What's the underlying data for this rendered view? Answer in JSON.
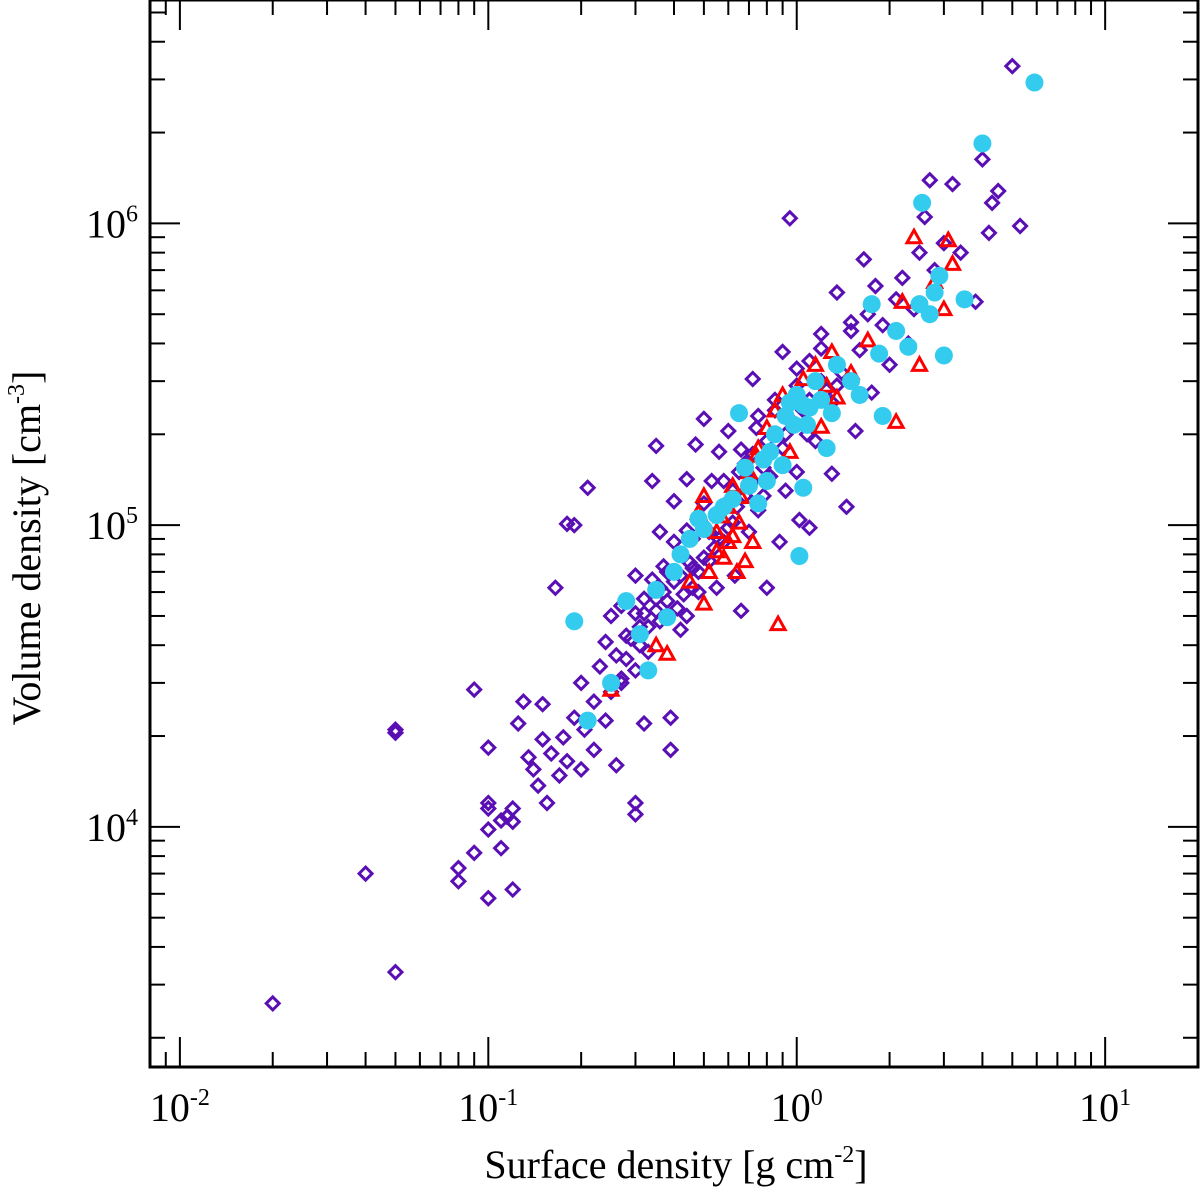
{
  "chart_data": {
    "type": "scatter",
    "xlabel": "Surface density [g cm",
    "xlabel_sup": "-2",
    "xlabel_tail": "]",
    "ylabel": "Volume density [cm",
    "ylabel_sup": "-3",
    "ylabel_tail": "]",
    "xscale": "log",
    "yscale": "log",
    "xlim": [
      0.008,
      20
    ],
    "ylim": [
      1600,
      5500000
    ],
    "x_ticks": [
      {
        "value": 0.01,
        "base": "10",
        "exp": "-2"
      },
      {
        "value": 0.1,
        "base": "10",
        "exp": "-1"
      },
      {
        "value": 1,
        "base": "10",
        "exp": "0"
      },
      {
        "value": 10,
        "base": "10",
        "exp": "1"
      }
    ],
    "y_ticks": [
      {
        "value": 10000,
        "base": "10",
        "exp": "4"
      },
      {
        "value": 100000,
        "base": "10",
        "exp": "5"
      },
      {
        "value": 1000000,
        "base": "10",
        "exp": "6"
      }
    ],
    "series": [
      {
        "marker": "diamond-open",
        "color": "#5a0fb4",
        "points": [
          [
            0.02,
            2600
          ],
          [
            0.04,
            7000
          ],
          [
            0.05,
            3300
          ],
          [
            0.05,
            21000
          ],
          [
            0.05,
            20500
          ],
          [
            0.08,
            7300
          ],
          [
            0.08,
            6600
          ],
          [
            0.09,
            8200
          ],
          [
            0.09,
            28500
          ],
          [
            0.1,
            5800
          ],
          [
            0.1,
            9800
          ],
          [
            0.1,
            12000
          ],
          [
            0.1,
            11500
          ],
          [
            0.1,
            18300
          ],
          [
            0.11,
            8500
          ],
          [
            0.11,
            10500
          ],
          [
            0.115,
            10800
          ],
          [
            0.12,
            6200
          ],
          [
            0.12,
            11500
          ],
          [
            0.12,
            10400
          ],
          [
            0.125,
            22000
          ],
          [
            0.13,
            26000
          ],
          [
            0.135,
            17000
          ],
          [
            0.14,
            15500
          ],
          [
            0.145,
            13700
          ],
          [
            0.15,
            19500
          ],
          [
            0.15,
            25500
          ],
          [
            0.155,
            12000
          ],
          [
            0.16,
            17500
          ],
          [
            0.165,
            62000
          ],
          [
            0.17,
            14800
          ],
          [
            0.175,
            19800
          ],
          [
            0.18,
            16500
          ],
          [
            0.18,
            101000
          ],
          [
            0.19,
            23000
          ],
          [
            0.19,
            100000
          ],
          [
            0.2,
            15500
          ],
          [
            0.2,
            30000
          ],
          [
            0.205,
            21000
          ],
          [
            0.21,
            133000
          ],
          [
            0.22,
            18000
          ],
          [
            0.22,
            26000
          ],
          [
            0.23,
            34000
          ],
          [
            0.24,
            22500
          ],
          [
            0.24,
            41000
          ],
          [
            0.25,
            28000
          ],
          [
            0.25,
            50000
          ],
          [
            0.26,
            37000
          ],
          [
            0.27,
            30000
          ],
          [
            0.27,
            54000
          ],
          [
            0.28,
            36000
          ],
          [
            0.29,
            42000
          ],
          [
            0.3,
            12000
          ],
          [
            0.3,
            11000
          ],
          [
            0.3,
            33000
          ],
          [
            0.3,
            68000
          ],
          [
            0.31,
            46000
          ],
          [
            0.32,
            22000
          ],
          [
            0.32,
            51000
          ],
          [
            0.33,
            38000
          ],
          [
            0.34,
            140000
          ],
          [
            0.35,
            57000
          ],
          [
            0.35,
            183000
          ],
          [
            0.36,
            48000
          ],
          [
            0.36,
            62000
          ],
          [
            0.36,
            95000
          ],
          [
            0.37,
            60000
          ],
          [
            0.38,
            70000
          ],
          [
            0.39,
            23000
          ],
          [
            0.39,
            18000
          ],
          [
            0.4,
            65000
          ],
          [
            0.4,
            120000
          ],
          [
            0.41,
            53000
          ],
          [
            0.42,
            80000
          ],
          [
            0.43,
            59000
          ],
          [
            0.44,
            142000
          ],
          [
            0.45,
            75000
          ],
          [
            0.46,
            90000
          ],
          [
            0.47,
            185000
          ],
          [
            0.48,
            60000
          ],
          [
            0.49,
            102000
          ],
          [
            0.5,
            78000
          ],
          [
            0.5,
            225000
          ],
          [
            0.52,
            95000
          ],
          [
            0.53,
            140000
          ],
          [
            0.55,
            62000
          ],
          [
            0.55,
            110000
          ],
          [
            0.56,
            175000
          ],
          [
            0.58,
            88000
          ],
          [
            0.6,
            205000
          ],
          [
            0.6,
            120000
          ],
          [
            0.62,
            130000
          ],
          [
            0.63,
            68000
          ],
          [
            0.65,
            150000
          ],
          [
            0.66,
            52000
          ],
          [
            0.68,
            160000
          ],
          [
            0.7,
            95000
          ],
          [
            0.72,
            305000
          ],
          [
            0.72,
            172000
          ],
          [
            0.75,
            112000
          ],
          [
            0.75,
            230000
          ],
          [
            0.78,
            125000
          ],
          [
            0.8,
            62000
          ],
          [
            0.8,
            190000
          ],
          [
            0.82,
            145000
          ],
          [
            0.85,
            260000
          ],
          [
            0.88,
            88000
          ],
          [
            0.9,
            180000
          ],
          [
            0.9,
            375000
          ],
          [
            0.92,
            130000
          ],
          [
            0.95,
            1040000
          ],
          [
            0.97,
            220000
          ],
          [
            1.0,
            290000
          ],
          [
            1.0,
            150000
          ],
          [
            1.02,
            104000
          ],
          [
            1.05,
            240000
          ],
          [
            1.08,
            200000
          ],
          [
            1.1,
            350000
          ],
          [
            1.1,
            98000
          ],
          [
            1.15,
            190000
          ],
          [
            1.2,
            430000
          ],
          [
            1.2,
            300000
          ],
          [
            1.25,
            280000
          ],
          [
            1.3,
            148000
          ],
          [
            1.3,
            255000
          ],
          [
            1.35,
            590000
          ],
          [
            1.4,
            320000
          ],
          [
            1.45,
            115000
          ],
          [
            1.5,
            440000
          ],
          [
            1.55,
            205000
          ],
          [
            1.6,
            380000
          ],
          [
            1.65,
            760000
          ],
          [
            1.7,
            500000
          ],
          [
            1.75,
            275000
          ],
          [
            1.8,
            620000
          ],
          [
            1.9,
            460000
          ],
          [
            2.0,
            340000
          ],
          [
            2.1,
            560000
          ],
          [
            2.2,
            660000
          ],
          [
            2.3,
            400000
          ],
          [
            2.4,
            520000
          ],
          [
            2.5,
            800000
          ],
          [
            2.6,
            1050000
          ],
          [
            2.7,
            1390000
          ],
          [
            2.8,
            700000
          ],
          [
            3.0,
            860000
          ],
          [
            3.2,
            1350000
          ],
          [
            3.4,
            800000
          ],
          [
            3.8,
            550000
          ],
          [
            4.0,
            1630000
          ],
          [
            4.2,
            930000
          ],
          [
            4.3,
            1170000
          ],
          [
            4.5,
            1280000
          ],
          [
            5.0,
            3320000
          ],
          [
            5.3,
            980000
          ],
          [
            0.26,
            16000
          ],
          [
            0.27,
            31000
          ],
          [
            0.28,
            43000
          ],
          [
            0.3,
            51000
          ],
          [
            0.31,
            40000
          ],
          [
            0.32,
            57000
          ],
          [
            0.33,
            46000
          ],
          [
            0.34,
            66000
          ],
          [
            0.35,
            52000
          ],
          [
            0.37,
            73000
          ],
          [
            0.38,
            56000
          ],
          [
            0.4,
            88000
          ],
          [
            0.42,
            68000
          ],
          [
            0.44,
            96000
          ],
          [
            0.46,
            72000
          ],
          [
            0.5,
            118000
          ],
          [
            0.54,
            84000
          ],
          [
            0.58,
            140000
          ],
          [
            0.62,
            102000
          ],
          [
            0.66,
            178000
          ],
          [
            0.7,
            138000
          ],
          [
            0.74,
            210000
          ],
          [
            0.78,
            155000
          ],
          [
            0.85,
            240000
          ],
          [
            0.92,
            200000
          ],
          [
            1.0,
            330000
          ],
          [
            1.1,
            260000
          ],
          [
            1.2,
            385000
          ],
          [
            1.35,
            290000
          ],
          [
            1.5,
            470000
          ],
          [
            0.42,
            45000
          ],
          [
            0.44,
            50000
          ],
          [
            0.46,
            62000
          ],
          [
            0.48,
            70000
          ],
          [
            0.52,
            76000
          ],
          [
            0.56,
            90000
          ],
          [
            0.6,
            98000
          ],
          [
            0.64,
            115000
          ],
          [
            0.68,
            125000
          ],
          [
            0.72,
            140000
          ]
        ]
      },
      {
        "marker": "triangle-open",
        "color": "#ff0000",
        "points": [
          [
            0.25,
            28500
          ],
          [
            0.35,
            40000
          ],
          [
            0.38,
            37500
          ],
          [
            0.45,
            65000
          ],
          [
            0.5,
            55000
          ],
          [
            0.5,
            125000
          ],
          [
            0.52,
            70000
          ],
          [
            0.55,
            82000
          ],
          [
            0.55,
            95000
          ],
          [
            0.57,
            107000
          ],
          [
            0.58,
            78000
          ],
          [
            0.6,
            115000
          ],
          [
            0.6,
            88000
          ],
          [
            0.62,
            92000
          ],
          [
            0.62,
            135000
          ],
          [
            0.64,
            70000
          ],
          [
            0.65,
            102000
          ],
          [
            0.66,
            124000
          ],
          [
            0.68,
            76000
          ],
          [
            0.7,
            150000
          ],
          [
            0.72,
            88000
          ],
          [
            0.74,
            170000
          ],
          [
            0.75,
            180000
          ],
          [
            0.8,
            210000
          ],
          [
            0.85,
            240000
          ],
          [
            0.87,
            47000
          ],
          [
            0.9,
            270000
          ],
          [
            0.95,
            175000
          ],
          [
            1.05,
            305000
          ],
          [
            1.15,
            340000
          ],
          [
            1.2,
            212000
          ],
          [
            1.25,
            290000
          ],
          [
            1.3,
            375000
          ],
          [
            1.35,
            265000
          ],
          [
            1.5,
            320000
          ],
          [
            1.7,
            410000
          ],
          [
            2.1,
            220000
          ],
          [
            2.2,
            550000
          ],
          [
            2.4,
            900000
          ],
          [
            2.5,
            340000
          ],
          [
            2.8,
            640000
          ],
          [
            3.0,
            520000
          ],
          [
            3.1,
            880000
          ],
          [
            3.2,
            735000
          ],
          [
            0.48,
            110000
          ]
        ]
      },
      {
        "marker": "circle-filled",
        "color": "#33ccee",
        "points": [
          [
            0.19,
            48000
          ],
          [
            0.21,
            22500
          ],
          [
            0.25,
            30000
          ],
          [
            0.28,
            56000
          ],
          [
            0.31,
            43500
          ],
          [
            0.33,
            33000
          ],
          [
            0.35,
            61000
          ],
          [
            0.38,
            49500
          ],
          [
            0.4,
            70000
          ],
          [
            0.42,
            80000
          ],
          [
            0.45,
            90000
          ],
          [
            0.48,
            105000
          ],
          [
            0.5,
            97000
          ],
          [
            0.55,
            108000
          ],
          [
            0.58,
            115000
          ],
          [
            0.62,
            122000
          ],
          [
            0.65,
            235000
          ],
          [
            0.68,
            155000
          ],
          [
            0.7,
            135000
          ],
          [
            0.75,
            118000
          ],
          [
            0.78,
            165000
          ],
          [
            0.8,
            140000
          ],
          [
            0.82,
            175000
          ],
          [
            0.85,
            200000
          ],
          [
            0.9,
            158000
          ],
          [
            0.95,
            255000
          ],
          [
            0.98,
            215000
          ],
          [
            1.0,
            270000
          ],
          [
            1.02,
            79000
          ],
          [
            1.05,
            133000
          ],
          [
            1.08,
            215000
          ],
          [
            1.1,
            245000
          ],
          [
            1.15,
            300000
          ],
          [
            1.2,
            260000
          ],
          [
            1.25,
            180000
          ],
          [
            1.35,
            340000
          ],
          [
            1.5,
            300000
          ],
          [
            1.6,
            270000
          ],
          [
            1.75,
            540000
          ],
          [
            1.85,
            370000
          ],
          [
            1.9,
            230000
          ],
          [
            2.1,
            440000
          ],
          [
            2.3,
            390000
          ],
          [
            2.5,
            540000
          ],
          [
            2.55,
            1170000
          ],
          [
            2.7,
            500000
          ],
          [
            2.9,
            670000
          ],
          [
            3.0,
            365000
          ],
          [
            3.5,
            560000
          ],
          [
            4.0,
            1840000
          ],
          [
            5.9,
            2930000
          ],
          [
            2.8,
            590000
          ],
          [
            1.05,
            250000
          ],
          [
            0.92,
            230000
          ],
          [
            1.3,
            235000
          ]
        ]
      }
    ]
  }
}
